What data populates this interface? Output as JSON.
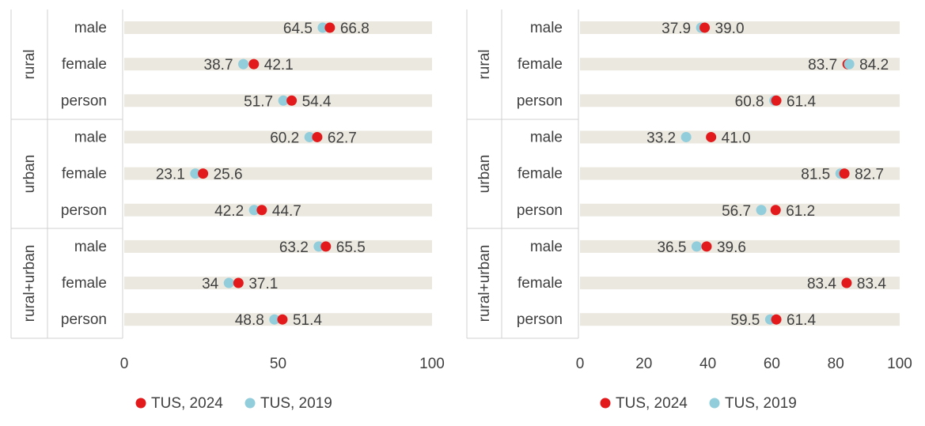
{
  "colors": {
    "tus2024": "#e31a1c",
    "tus2019": "#92cddc",
    "band": "#ebe8e0",
    "frame": "#d0d0d0",
    "text": "#404040"
  },
  "chart_data": [
    {
      "type": "dot",
      "xlim": [
        0,
        100
      ],
      "xticks": [
        0,
        50,
        100
      ],
      "groups": [
        {
          "label": "rural",
          "rows": [
            {
              "label": "male",
              "v2019": 64.5,
              "v2024": 66.8,
              "t2019": "64.5",
              "t2024": "66.8"
            },
            {
              "label": "female",
              "v2019": 38.7,
              "v2024": 42.1,
              "t2019": "38.7",
              "t2024": "42.1"
            },
            {
              "label": "person",
              "v2019": 51.7,
              "v2024": 54.4,
              "t2019": "51.7",
              "t2024": "54.4"
            }
          ]
        },
        {
          "label": "urban",
          "rows": [
            {
              "label": "male",
              "v2019": 60.2,
              "v2024": 62.7,
              "t2019": "60.2",
              "t2024": "62.7"
            },
            {
              "label": "female",
              "v2019": 23.1,
              "v2024": 25.6,
              "t2019": "23.1",
              "t2024": "25.6"
            },
            {
              "label": "person",
              "v2019": 42.2,
              "v2024": 44.7,
              "t2019": "42.2",
              "t2024": "44.7"
            }
          ]
        },
        {
          "label": "rural+urban",
          "rows": [
            {
              "label": "male",
              "v2019": 63.2,
              "v2024": 65.5,
              "t2019": "63.2",
              "t2024": "65.5"
            },
            {
              "label": "female",
              "v2019": 34.0,
              "v2024": 37.1,
              "t2019": "34",
              "t2024": "37.1"
            },
            {
              "label": "person",
              "v2019": 48.8,
              "v2024": 51.4,
              "t2019": "48.8",
              "t2024": "51.4"
            }
          ]
        }
      ],
      "legend": [
        {
          "key": "tus2024",
          "label": "TUS, 2024"
        },
        {
          "key": "tus2019",
          "label": "TUS, 2019"
        }
      ]
    },
    {
      "type": "dot",
      "xlim": [
        0,
        100
      ],
      "xticks": [
        0,
        20,
        40,
        60,
        80,
        100
      ],
      "groups": [
        {
          "label": "rural",
          "rows": [
            {
              "label": "male",
              "v2019": 37.9,
              "v2024": 39.0,
              "t2019": "37.9",
              "t2024": "39.0"
            },
            {
              "label": "female",
              "v2019": 84.2,
              "v2024": 83.7,
              "t2019": "84.2",
              "t2024": "83.7"
            },
            {
              "label": "person",
              "v2019": 60.8,
              "v2024": 61.4,
              "t2019": "60.8",
              "t2024": "61.4"
            }
          ]
        },
        {
          "label": "urban",
          "rows": [
            {
              "label": "male",
              "v2019": 33.2,
              "v2024": 41.0,
              "t2019": "33.2",
              "t2024": "41.0"
            },
            {
              "label": "female",
              "v2019": 81.5,
              "v2024": 82.7,
              "t2019": "81.5",
              "t2024": "82.7"
            },
            {
              "label": "person",
              "v2019": 56.7,
              "v2024": 61.2,
              "t2019": "56.7",
              "t2024": "61.2"
            }
          ]
        },
        {
          "label": "rural+urban",
          "rows": [
            {
              "label": "male",
              "v2019": 36.5,
              "v2024": 39.6,
              "t2019": "36.5",
              "t2024": "39.6"
            },
            {
              "label": "female",
              "v2019": 83.4,
              "v2024": 83.4,
              "t2019": "83.4",
              "t2024": "83.4"
            },
            {
              "label": "person",
              "v2019": 59.5,
              "v2024": 61.4,
              "t2019": "59.5",
              "t2024": "61.4"
            }
          ]
        }
      ],
      "legend": [
        {
          "key": "tus2024",
          "label": "TUS, 2024"
        },
        {
          "key": "tus2019",
          "label": "TUS, 2019"
        }
      ]
    }
  ]
}
